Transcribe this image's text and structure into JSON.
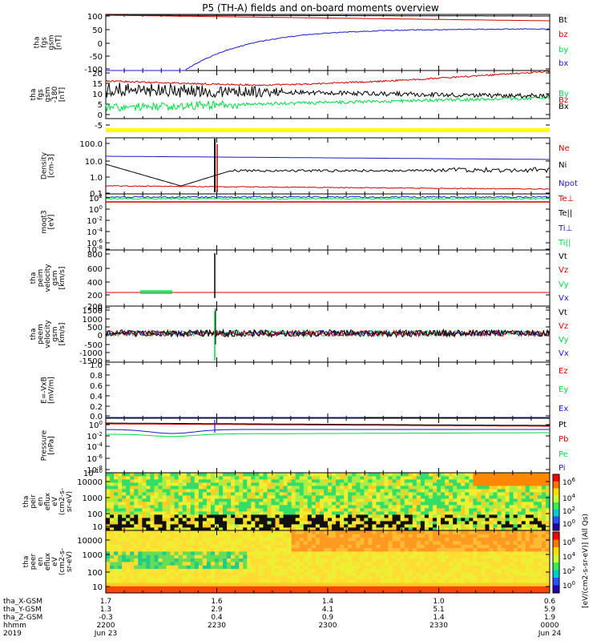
{
  "title": "P5 (TH-A) fields and on-board moments overview",
  "colors": {
    "black": "#000000",
    "red": "#d40000",
    "green": "#00dd44",
    "blue": "#1a1acc",
    "yellow": "#ffff00"
  },
  "colorbar_ticks": [
    "10^6",
    "10^4",
    "10^2",
    "10^0"
  ],
  "spec_label": "[eV/(cm2-s-sr-eV)] (All Qs)",
  "orbit": {
    "rows": [
      {
        "label": "tha_X-GSM",
        "values": [
          "1.7",
          "1.6",
          "1.4",
          "1.0",
          "0.6"
        ]
      },
      {
        "label": "tha_Y-GSM",
        "values": [
          "1.3",
          "2.9",
          "4.1",
          "5.1",
          "5.9"
        ]
      },
      {
        "label": "tha_Z-GSM",
        "values": [
          "-0.3",
          "0.4",
          "0.9",
          "1.4",
          "1.9"
        ]
      },
      {
        "label": "hhmm",
        "values": [
          "2200",
          "2230",
          "2300",
          "2330",
          "0000"
        ]
      },
      {
        "label": "2019",
        "values": [
          "Jun 23",
          "",
          "",
          "",
          "Jun 24"
        ]
      }
    ]
  },
  "chart_data": {
    "type": "line",
    "title": "P5 (TH-A) fields and on-board moments overview",
    "time_range": [
      "2019-06-23 22:00",
      "2019-06-24 00:00"
    ],
    "panels": [
      {
        "ylabel": [
          "tha",
          "fgs",
          "gsm",
          "[nT]"
        ],
        "ylim": [
          -100,
          100
        ],
        "ticks": [
          "100",
          "50",
          "0",
          "-50",
          "-100"
        ],
        "legend": [
          {
            "label": "Bt",
            "color": "black"
          },
          {
            "label": "bz",
            "color": "red"
          },
          {
            "label": "by",
            "color": "green"
          },
          {
            "label": "bx",
            "color": "blue"
          }
        ]
      },
      {
        "ylabel": [
          "tha",
          "fgs",
          "gsm",
          "-180",
          "[nT]"
        ],
        "ylim": [
          -5,
          20
        ],
        "ticks": [
          "20",
          "15",
          "10",
          "5",
          "0",
          "-5"
        ],
        "legend": [
          {
            "label": "By",
            "color": "green"
          },
          {
            "label": "Bz",
            "color": "red"
          },
          {
            "label": "Bx",
            "color": "black"
          }
        ]
      },
      {
        "ylabel": [
          "Density",
          "[cm-3]"
        ],
        "scale": "log",
        "ticks": [
          "100.0",
          "10.0",
          "1.0",
          "0.1"
        ],
        "legend": [
          {
            "label": "Ne",
            "color": "red"
          },
          {
            "label": "Ni",
            "color": "black"
          },
          {
            "label": "Npot",
            "color": "blue"
          }
        ]
      },
      {
        "ylabel": [
          "moqt3",
          "[eV]"
        ],
        "scale": "log",
        "ticks": [
          "10^2",
          "10^0",
          "10^-2",
          "10^-4",
          "10^-6",
          "10^-8"
        ],
        "legend": [
          {
            "label": "Te⊥",
            "color": "red"
          },
          {
            "label": "Te||",
            "color": "black"
          },
          {
            "label": "Ti⊥",
            "color": "blue"
          },
          {
            "label": "Ti||",
            "color": "green"
          }
        ]
      },
      {
        "ylabel": [
          "tha",
          "peim",
          "velocity",
          "gsm",
          "[km/s]"
        ],
        "ylim": [
          -200,
          800
        ],
        "ticks": [
          "800",
          "600",
          "400",
          "200",
          "0",
          "-200"
        ],
        "legend": [
          {
            "label": "Vt",
            "color": "black"
          },
          {
            "label": "Vz",
            "color": "red"
          },
          {
            "label": "Vy",
            "color": "green"
          },
          {
            "label": "Vx",
            "color": "blue"
          }
        ]
      },
      {
        "ylabel": [
          "tha",
          "peem",
          "velocity",
          "gsm",
          "[km/s]"
        ],
        "ylim": [
          -1500,
          1500
        ],
        "ticks": [
          "1500",
          "1000",
          "500",
          "0",
          "-500",
          "-1000",
          "-1500"
        ],
        "legend": [
          {
            "label": "Vt",
            "color": "black"
          },
          {
            "label": "Vz",
            "color": "red"
          },
          {
            "label": "Vy",
            "color": "green"
          },
          {
            "label": "Vx",
            "color": "blue"
          }
        ]
      },
      {
        "ylabel": [
          "E=-VxB",
          "[mV/m]"
        ],
        "ylim": [
          0,
          1
        ],
        "ticks": [
          "1.0",
          "0.8",
          "0.6",
          "0.4",
          "0.2",
          "0.0"
        ],
        "legend": [
          {
            "label": "Ez",
            "color": "red"
          },
          {
            "label": "Ey",
            "color": "green"
          },
          {
            "label": "Ex",
            "color": "blue"
          }
        ]
      },
      {
        "ylabel": [
          "Pressure",
          "[nPa]"
        ],
        "scale": "log",
        "ticks": [
          "10^0",
          "10^-2",
          "10^-4",
          "10^-6",
          "10^-8",
          "10^-10"
        ],
        "legend": [
          {
            "label": "Pt",
            "color": "black"
          },
          {
            "label": "Pb",
            "color": "red"
          },
          {
            "label": "Pe",
            "color": "green"
          },
          {
            "label": "Pi",
            "color": "blue"
          }
        ]
      },
      {
        "ylabel": [
          "tha",
          "peir",
          "en",
          "eflux",
          "eV",
          "(cm2-s-",
          "sr-eV)"
        ],
        "type": "heatmap",
        "ticks": [
          "10000",
          "1000",
          "100",
          "10"
        ]
      },
      {
        "ylabel": [
          "tha",
          "peer",
          "en",
          "eflux",
          "eV",
          "(cm2-s-",
          "sr-eV)"
        ],
        "type": "heatmap",
        "ticks": [
          "10000",
          "1000",
          "100",
          "10"
        ]
      }
    ]
  }
}
